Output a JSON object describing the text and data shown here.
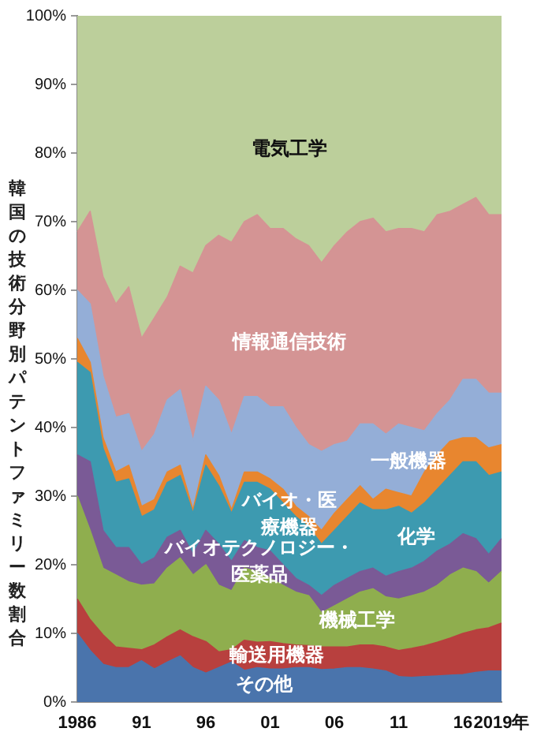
{
  "chart_data": {
    "type": "area",
    "stacked": true,
    "ylabel": "韓国の技術分野別パテントファミリー数割合",
    "categories": [
      "1986",
      null,
      null,
      null,
      null,
      "91",
      null,
      null,
      null,
      null,
      "96",
      null,
      null,
      null,
      null,
      "01",
      null,
      null,
      null,
      null,
      "06",
      null,
      null,
      null,
      null,
      "11",
      null,
      null,
      null,
      null,
      "16",
      null,
      null,
      "2019年"
    ],
    "ylim": [
      0,
      100
    ],
    "yticks": [
      {
        "value": 0,
        "label": "0%"
      },
      {
        "value": 10,
        "label": "10%"
      },
      {
        "value": 20,
        "label": "20%"
      },
      {
        "value": 30,
        "label": "30%"
      },
      {
        "value": 40,
        "label": "40%"
      },
      {
        "value": 50,
        "label": "50%"
      },
      {
        "value": 60,
        "label": "60%"
      },
      {
        "value": 70,
        "label": "70%"
      },
      {
        "value": 80,
        "label": "80%"
      },
      {
        "value": 90,
        "label": "90%"
      },
      {
        "value": 100,
        "label": "100%"
      }
    ],
    "grid": false,
    "legend": false,
    "series": [
      {
        "name": "その他",
        "color": "#4a74ac",
        "values": [
          10,
          7.5,
          5.5,
          5,
          5,
          6,
          4.8,
          5.8,
          6.7,
          5,
          4.2,
          5,
          5.8,
          4.6,
          5,
          4.8,
          4.8,
          5,
          5,
          4.7,
          4.8,
          5,
          5,
          4.8,
          4.5,
          3.7,
          3.6,
          3.7,
          3.8,
          3.9,
          4,
          4.3,
          4.5,
          4.5
        ]
      },
      {
        "name": "輸送用機器",
        "color": "#b8403e",
        "values": [
          5,
          4.5,
          4.3,
          3,
          2.8,
          1.6,
          3.5,
          3.7,
          3.8,
          4.5,
          4.6,
          2.3,
          1.8,
          4.4,
          3.7,
          4,
          3.7,
          3.3,
          3.2,
          3.3,
          3.2,
          3,
          3.3,
          3.5,
          3.5,
          3.8,
          4.2,
          4.5,
          4.9,
          5.4,
          6,
          6.2,
          6.3,
          7
        ]
      },
      {
        "name": "機械工学",
        "color": "#8fae4e",
        "values": [
          15,
          13,
          9.7,
          10.5,
          9.7,
          9.4,
          8.9,
          10,
          10.5,
          9,
          11.2,
          9.7,
          8.6,
          10.5,
          10.3,
          9.2,
          8.5,
          7.7,
          7.3,
          5,
          6,
          7,
          7.7,
          8.2,
          7.3,
          7.5,
          7.7,
          7.8,
          8.3,
          9.2,
          9.5,
          8.5,
          6.5,
          7.5
        ]
      },
      {
        "name": "バイオテクノロジー・医薬品",
        "color": "#7a5a96",
        "values": [
          6,
          10,
          5.5,
          4,
          5,
          3,
          3.8,
          4.5,
          4,
          3,
          5,
          6,
          4.3,
          4,
          3.5,
          4,
          3,
          2,
          1.5,
          2.5,
          3,
          3,
          3,
          3,
          3,
          4,
          4,
          4.5,
          5,
          4.5,
          5,
          4.8,
          4.2,
          4.8
        ]
      },
      {
        "name": "化学",
        "color": "#3d9ab0",
        "values": [
          13.5,
          13,
          12,
          9.5,
          10,
          7,
          7,
          8,
          8,
          6,
          9.5,
          8.5,
          7,
          8.5,
          9.5,
          9,
          9,
          9,
          8.5,
          7.5,
          8,
          9,
          10,
          8.5,
          9.7,
          9.5,
          8,
          8.5,
          9,
          10,
          10.5,
          11.2,
          11.5,
          9.7
        ]
      },
      {
        "name": "バイオ・医療機器",
        "color": "#e8862f",
        "values": [
          3.5,
          1.5,
          1.5,
          1.5,
          2,
          1.5,
          1.5,
          1.5,
          1.5,
          0.5,
          1.5,
          1.5,
          0.5,
          1.5,
          1.5,
          1.5,
          2,
          1.5,
          1.5,
          2,
          2.5,
          2.5,
          2.5,
          1.5,
          3,
          2,
          2.5,
          4.5,
          5,
          5,
          3.5,
          3.5,
          4,
          4
        ]
      },
      {
        "name": "一般機器",
        "color": "#94aed7",
        "values": [
          7,
          8.5,
          9,
          8,
          7.5,
          8,
          9.5,
          10.5,
          11,
          10,
          10,
          11,
          11,
          11,
          11,
          10.5,
          12,
          11.5,
          10.5,
          11.5,
          10,
          8.5,
          9,
          11,
          8,
          10,
          10,
          6,
          6,
          6,
          8.5,
          8.5,
          8,
          7.5
        ]
      },
      {
        "name": "情報通信技術",
        "color": "#d49494",
        "values": [
          8.5,
          13.5,
          14.5,
          16.5,
          18.5,
          16.5,
          17,
          15,
          18,
          24.5,
          20.5,
          24,
          28,
          25.5,
          26.5,
          26,
          26,
          27.5,
          29,
          27.5,
          29,
          30.5,
          29.5,
          30,
          29.5,
          28.5,
          29,
          29,
          29,
          27.5,
          25.5,
          26.5,
          26,
          26
        ]
      },
      {
        "name": "電気工学",
        "color": "#bccf9b",
        "values": [
          31.5,
          28.5,
          38,
          42,
          39.5,
          47,
          44,
          41,
          36.5,
          37.5,
          33.5,
          32,
          33,
          30,
          29,
          31,
          31,
          32.5,
          33.5,
          36,
          33.5,
          31.5,
          30,
          29.5,
          31.5,
          31,
          31,
          31.5,
          29,
          28.5,
          27.5,
          26.5,
          29,
          29
        ]
      }
    ]
  }
}
